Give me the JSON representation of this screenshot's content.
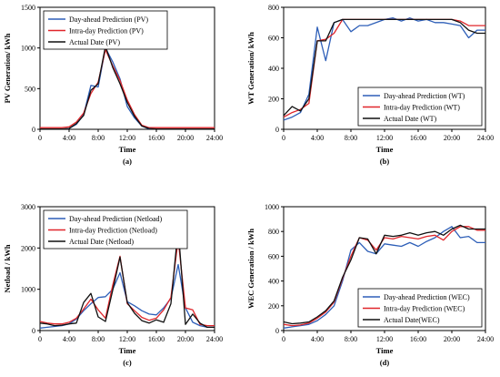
{
  "chart_data": [
    {
      "type": "line",
      "panel_label": "(a)",
      "xlabel": "Time",
      "ylabel": "PV  Generation/ kWh",
      "xlim": [
        0,
        24
      ],
      "ylim": [
        0,
        1500
      ],
      "x_tick_labels": [
        "0",
        "4:00",
        "8:00",
        "12:00",
        "16:00",
        "20:00",
        "24:00"
      ],
      "y_ticks": [
        0,
        500,
        1000,
        1500
      ],
      "legend_position": "top-left",
      "x": [
        0,
        1,
        2,
        3,
        4,
        5,
        6,
        7,
        8,
        9,
        10,
        11,
        12,
        13,
        14,
        15,
        16,
        17,
        18,
        19,
        20,
        21,
        22,
        23,
        24
      ],
      "series": [
        {
          "name": "Day-ahead Prediction (PV)",
          "color": "#2e5fb8",
          "values": [
            0,
            0,
            0,
            0,
            10,
            60,
            180,
            540,
            520,
            1000,
            830,
            620,
            280,
            140,
            40,
            5,
            0,
            0,
            0,
            0,
            0,
            0,
            0,
            0,
            0
          ]
        },
        {
          "name": "Intra-day Prediction (PV)",
          "color": "#e0262b",
          "values": [
            20,
            20,
            20,
            20,
            30,
            90,
            200,
            440,
            580,
            980,
            780,
            600,
            360,
            180,
            50,
            20,
            20,
            20,
            20,
            20,
            20,
            20,
            20,
            20,
            20
          ]
        },
        {
          "name": "Actual Date (PV)",
          "color": "#111111",
          "values": [
            5,
            5,
            5,
            5,
            10,
            70,
            170,
            480,
            560,
            1020,
            760,
            560,
            330,
            160,
            40,
            10,
            5,
            5,
            5,
            5,
            5,
            5,
            5,
            5,
            5
          ]
        }
      ]
    },
    {
      "type": "line",
      "panel_label": "(b)",
      "xlabel": "Time",
      "ylabel": "WT Generation/ kWh",
      "xlim": [
        0,
        24
      ],
      "ylim": [
        0,
        800
      ],
      "x_tick_labels": [
        "0",
        "4:00",
        "8:00",
        "12:00",
        "16:00",
        "20:00",
        "24:00"
      ],
      "y_ticks": [
        0,
        200,
        400,
        600,
        800
      ],
      "legend_position": "bottom-right",
      "x": [
        0,
        1,
        2,
        3,
        4,
        5,
        6,
        7,
        8,
        9,
        10,
        11,
        12,
        13,
        14,
        15,
        16,
        17,
        18,
        19,
        20,
        21,
        22,
        23,
        24
      ],
      "series": [
        {
          "name": "Day-ahead Prediction (WT)",
          "color": "#2e5fb8",
          "values": [
            60,
            80,
            110,
            230,
            670,
            450,
            700,
            720,
            640,
            680,
            680,
            700,
            720,
            730,
            710,
            730,
            710,
            720,
            700,
            700,
            690,
            680,
            600,
            650,
            650
          ]
        },
        {
          "name": "Intra-day Prediction (WT)",
          "color": "#e0262b",
          "values": [
            80,
            110,
            130,
            170,
            580,
            590,
            630,
            720,
            720,
            720,
            720,
            720,
            720,
            720,
            720,
            720,
            720,
            720,
            720,
            720,
            720,
            710,
            680,
            680,
            680
          ]
        },
        {
          "name": "Actual Date (WT)",
          "color": "#111111",
          "values": [
            90,
            150,
            120,
            200,
            580,
            580,
            700,
            720,
            720,
            720,
            720,
            720,
            720,
            720,
            720,
            720,
            720,
            720,
            720,
            720,
            720,
            700,
            650,
            630,
            630
          ]
        }
      ]
    },
    {
      "type": "line",
      "panel_label": "(c)",
      "xlabel": "Time",
      "ylabel": "Netload  / kWh",
      "xlim": [
        0,
        24
      ],
      "ylim": [
        0,
        3000
      ],
      "x_tick_labels": [
        "0",
        "4:00",
        "8:00",
        "12:00",
        "16:00",
        "20:00",
        "24:00"
      ],
      "y_ticks": [
        0,
        1000,
        2000,
        3000
      ],
      "legend_position": "top-left",
      "x": [
        0,
        1,
        2,
        3,
        4,
        5,
        6,
        7,
        8,
        9,
        10,
        11,
        12,
        13,
        14,
        15,
        16,
        17,
        18,
        19,
        20,
        21,
        22,
        23,
        24
      ],
      "series": [
        {
          "name": "Day-ahead Prediction (Netload)",
          "color": "#2e5fb8",
          "values": [
            60,
            80,
            100,
            120,
            160,
            280,
            480,
            650,
            800,
            820,
            1000,
            1400,
            700,
            600,
            480,
            400,
            380,
            550,
            780,
            1600,
            550,
            200,
            120,
            80,
            80
          ]
        },
        {
          "name": "Intra-day Prediction (Netload)",
          "color": "#e0262b",
          "values": [
            220,
            180,
            160,
            160,
            200,
            300,
            520,
            760,
            500,
            300,
            1100,
            1800,
            650,
            480,
            320,
            250,
            300,
            500,
            800,
            2200,
            550,
            500,
            150,
            120,
            120
          ]
        },
        {
          "name": "Actual Date (Netload)",
          "color": "#111111",
          "values": [
            180,
            160,
            120,
            130,
            160,
            180,
            680,
            900,
            330,
            220,
            980,
            1780,
            680,
            420,
            240,
            180,
            260,
            200,
            650,
            2480,
            150,
            400,
            180,
            80,
            80
          ]
        }
      ]
    },
    {
      "type": "line",
      "panel_label": "(d)",
      "xlabel": "Time",
      "ylabel": "WEC Generation / kWh",
      "xlim": [
        0,
        24
      ],
      "ylim": [
        0,
        1000
      ],
      "x_tick_labels": [
        "0",
        "4:00",
        "8:00",
        "12:00",
        "16:00",
        "20:00",
        "24:00"
      ],
      "y_ticks": [
        0,
        200,
        400,
        600,
        800,
        1000
      ],
      "legend_position": "bottom-right",
      "x": [
        0,
        1,
        2,
        3,
        4,
        5,
        6,
        7,
        8,
        9,
        10,
        11,
        12,
        13,
        14,
        15,
        16,
        17,
        18,
        19,
        20,
        21,
        22,
        23,
        24
      ],
      "series": [
        {
          "name": "Day-ahead Prediction (WEC)",
          "color": "#2e5fb8",
          "values": [
            20,
            30,
            40,
            50,
            80,
            130,
            200,
            400,
            650,
            710,
            640,
            620,
            700,
            690,
            680,
            710,
            680,
            720,
            750,
            800,
            840,
            750,
            760,
            710,
            710
          ]
        },
        {
          "name": "Intra-day Prediction (WEC)",
          "color": "#e0262b",
          "values": [
            50,
            40,
            45,
            60,
            100,
            150,
            230,
            420,
            600,
            750,
            730,
            650,
            750,
            740,
            760,
            750,
            740,
            760,
            770,
            730,
            800,
            840,
            840,
            810,
            810
          ]
        },
        {
          "name": "Actual Date(WEC)",
          "color": "#111111",
          "values": [
            70,
            55,
            60,
            70,
            110,
            160,
            240,
            430,
            570,
            750,
            740,
            620,
            770,
            760,
            770,
            790,
            770,
            790,
            800,
            770,
            820,
            850,
            820,
            820,
            820
          ]
        }
      ]
    }
  ]
}
